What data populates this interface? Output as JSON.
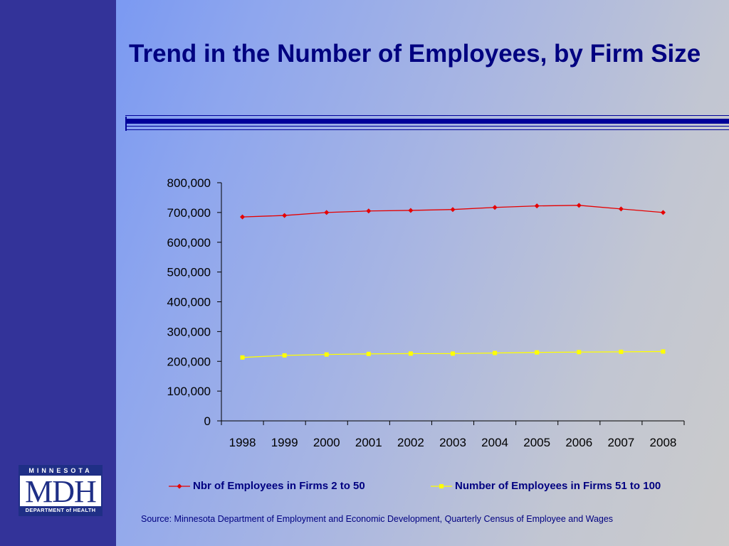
{
  "slide": {
    "title": "Trend in the Number of Employees, by Firm Size",
    "source": "Source: Minnesota Department of Employment and Economic Development, Quarterly Census of Employee and Wages"
  },
  "logo": {
    "top_text": "MINNESOTA",
    "main_text": "MDH",
    "bottom_text": "DEPARTMENT of HEALTH"
  },
  "colors": {
    "sidebar": "#333399",
    "title": "#000080",
    "series_1": "#e60000",
    "series_2": "#ffff00"
  },
  "chart_data": {
    "type": "line",
    "title": "",
    "xlabel": "",
    "ylabel": "",
    "categories": [
      "1998",
      "1999",
      "2000",
      "2001",
      "2002",
      "2003",
      "2004",
      "2005",
      "2006",
      "2007",
      "2008"
    ],
    "ylim": [
      0,
      800000
    ],
    "yticks": [
      0,
      100000,
      200000,
      300000,
      400000,
      500000,
      600000,
      700000,
      800000
    ],
    "ytick_labels": [
      "0",
      "100,000",
      "200,000",
      "300,000",
      "400,000",
      "500,000",
      "600,000",
      "700,000",
      "800,000"
    ],
    "grid": false,
    "legend_position": "bottom",
    "series": [
      {
        "name": "Nbr of Employees in Firms 2 to 50",
        "marker": "diamond",
        "values": [
          685000,
          690000,
          700000,
          705000,
          707000,
          710000,
          717000,
          722000,
          724000,
          712000,
          700000
        ]
      },
      {
        "name": "Number of Employees in Firms 51 to 100",
        "marker": "square",
        "values": [
          213000,
          220000,
          223000,
          225000,
          226000,
          226000,
          228000,
          230000,
          231000,
          232000,
          233000
        ]
      }
    ]
  }
}
